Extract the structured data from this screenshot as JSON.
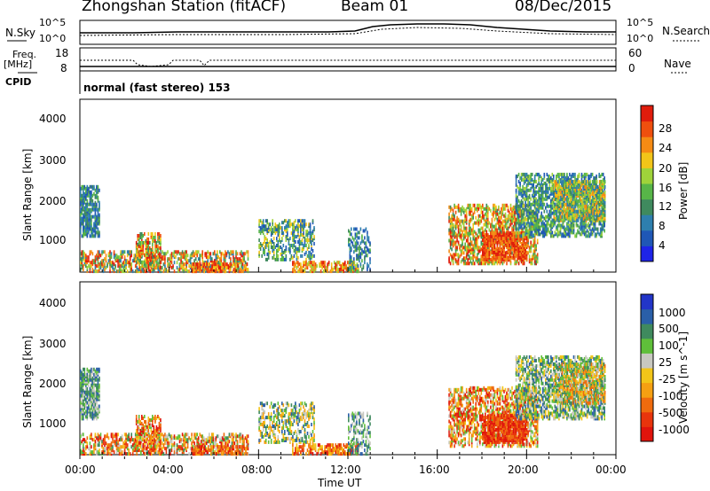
{
  "header": {
    "station": "Zhongshan Station (fitACF)",
    "beam": "Beam 01",
    "date": "08/Dec/2015"
  },
  "top_panels": {
    "nsky_label": "N.Sky",
    "nsky_ticks": [
      "10^5",
      "10^0"
    ],
    "nsearch_label": "N.Search",
    "nsearch_ticks": [
      "10^5",
      "10^0"
    ],
    "freq_label_1": "Freq.",
    "freq_label_2": "[MHz]",
    "freq_ticks": [
      "18",
      "8"
    ],
    "nave_label": "Nave",
    "nave_ticks": [
      "60",
      "0"
    ],
    "cpid_label": "CPID",
    "cpid_text": "normal (fast stereo) 153"
  },
  "chart_data": [
    {
      "type": "heatmap",
      "name": "power",
      "ylabel": "Slant Range [km]",
      "yticks": [
        "4000",
        "3000",
        "2000",
        "1000"
      ],
      "ylim": [
        180,
        4600
      ],
      "xlim": [
        0,
        24
      ],
      "colorbar_label": "Power [dB]",
      "colorbar_ticks": [
        "28",
        "24",
        "20",
        "16",
        "12",
        "8",
        "4"
      ],
      "colors": [
        "#1e24e8",
        "#1f57b6",
        "#2e7fae",
        "#3f8a5e",
        "#57b548",
        "#9fd33a",
        "#f2c519",
        "#f58b14",
        "#ef4f0e",
        "#e01c0c"
      ]
    },
    {
      "type": "heatmap",
      "name": "velocity",
      "ylabel": "Slant Range [km]",
      "yticks": [
        "4000",
        "3000",
        "2000",
        "1000"
      ],
      "ylim": [
        180,
        4600
      ],
      "xlim": [
        0,
        24
      ],
      "colorbar_label": "Velocity [m s^-1]",
      "colorbar_ticks": [
        "1000",
        "500",
        "100",
        "25",
        "-25",
        "-100",
        "-500",
        "-1000"
      ],
      "colors": [
        "#2235c8",
        "#2a5fa8",
        "#3f8a5e",
        "#5fbf3a",
        "#c8c8c0",
        "#f2c519",
        "#f5a012",
        "#ef6b0e",
        "#e8340c",
        "#e0140c"
      ]
    }
  ],
  "xaxis": {
    "ticks": [
      "00:00",
      "04:00",
      "08:00",
      "12:00",
      "16:00",
      "20:00",
      "00:00"
    ],
    "label": "Time UT"
  }
}
